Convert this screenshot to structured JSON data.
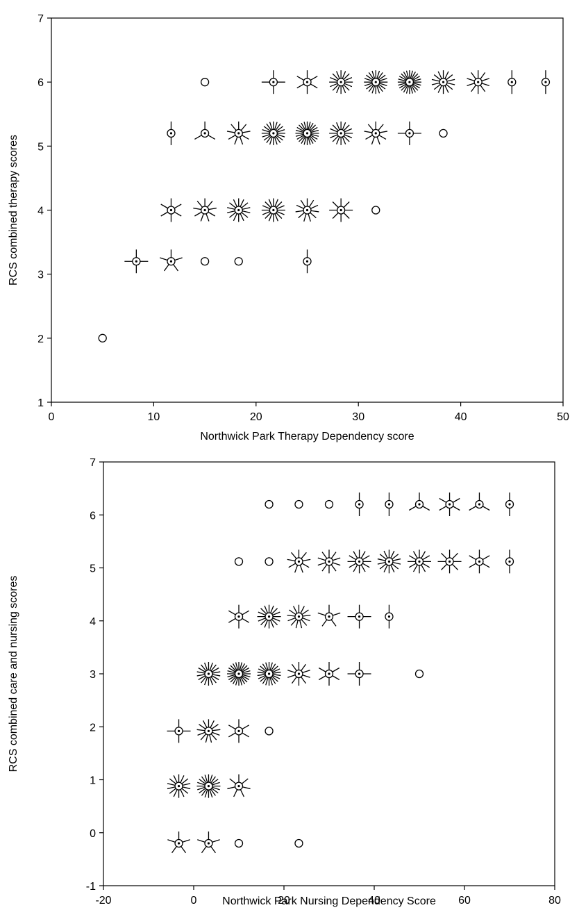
{
  "chart_data": [
    {
      "type": "scatter",
      "title": "",
      "xlabel": "Northwick Park Therapy Dependency score",
      "ylabel": "RCS combined therapy scores",
      "xlim": [
        0,
        50
      ],
      "ylim": [
        1,
        7
      ],
      "xticks": [
        0,
        10,
        20,
        30,
        40,
        50
      ],
      "yticks": [
        1,
        2,
        3,
        4,
        5,
        6,
        7
      ],
      "marker": "sunflower (circle with one ray per additional coincident observation)",
      "points": [
        {
          "x": 5,
          "y": 2,
          "n": 1
        },
        {
          "x": 8.3,
          "y": 3.2,
          "n": 4
        },
        {
          "x": 11.7,
          "y": 3.2,
          "n": 5
        },
        {
          "x": 15,
          "y": 3.2,
          "n": 1
        },
        {
          "x": 18.3,
          "y": 3.2,
          "n": 1
        },
        {
          "x": 25,
          "y": 3.2,
          "n": 2
        },
        {
          "x": 11.7,
          "y": 4,
          "n": 6
        },
        {
          "x": 15,
          "y": 4,
          "n": 9
        },
        {
          "x": 18.3,
          "y": 4,
          "n": 14
        },
        {
          "x": 21.7,
          "y": 4,
          "n": 16
        },
        {
          "x": 25,
          "y": 4,
          "n": 11
        },
        {
          "x": 28.3,
          "y": 4,
          "n": 8
        },
        {
          "x": 31.7,
          "y": 4,
          "n": 1
        },
        {
          "x": 11.7,
          "y": 5.2,
          "n": 2
        },
        {
          "x": 15,
          "y": 5.2,
          "n": 3
        },
        {
          "x": 18.3,
          "y": 5.2,
          "n": 9
        },
        {
          "x": 21.7,
          "y": 5.2,
          "n": 20
        },
        {
          "x": 25,
          "y": 5.2,
          "n": 24
        },
        {
          "x": 28.3,
          "y": 5.2,
          "n": 16
        },
        {
          "x": 31.7,
          "y": 5.2,
          "n": 9
        },
        {
          "x": 35,
          "y": 5.2,
          "n": 4
        },
        {
          "x": 38.3,
          "y": 5.2,
          "n": 1
        },
        {
          "x": 15,
          "y": 6,
          "n": 1
        },
        {
          "x": 21.7,
          "y": 6,
          "n": 4
        },
        {
          "x": 25,
          "y": 6,
          "n": 6
        },
        {
          "x": 28.3,
          "y": 6,
          "n": 16
        },
        {
          "x": 31.7,
          "y": 6,
          "n": 20
        },
        {
          "x": 35,
          "y": 6,
          "n": 24
        },
        {
          "x": 38.3,
          "y": 6,
          "n": 14
        },
        {
          "x": 41.7,
          "y": 6,
          "n": 10
        },
        {
          "x": 45,
          "y": 6,
          "n": 2
        },
        {
          "x": 48.3,
          "y": 6,
          "n": 2
        }
      ]
    },
    {
      "type": "scatter",
      "title": "",
      "xlabel": "Northwick Park Nursing Dependency Score",
      "ylabel": "RCS combined care and nursing scores",
      "xlim": [
        -20,
        80
      ],
      "ylim": [
        -1,
        7
      ],
      "xticks": [
        -20,
        0,
        20,
        40,
        60,
        80
      ],
      "yticks": [
        -1,
        0,
        1,
        2,
        3,
        4,
        5,
        6,
        7
      ],
      "marker": "sunflower (circle with one ray per additional coincident observation)",
      "points": [
        {
          "x": -3.3,
          "y": -0.2,
          "n": 5
        },
        {
          "x": 3.3,
          "y": -0.2,
          "n": 5
        },
        {
          "x": 10,
          "y": -0.2,
          "n": 1
        },
        {
          "x": 23.3,
          "y": -0.2,
          "n": 1
        },
        {
          "x": -3.3,
          "y": 0.88,
          "n": 14
        },
        {
          "x": 3.3,
          "y": 0.88,
          "n": 20
        },
        {
          "x": 10,
          "y": 0.88,
          "n": 7
        },
        {
          "x": -3.3,
          "y": 1.92,
          "n": 4
        },
        {
          "x": 3.3,
          "y": 1.92,
          "n": 13
        },
        {
          "x": 10,
          "y": 1.92,
          "n": 6
        },
        {
          "x": 16.7,
          "y": 1.92,
          "n": 1
        },
        {
          "x": 3.3,
          "y": 3,
          "n": 18
        },
        {
          "x": 10,
          "y": 3,
          "n": 24
        },
        {
          "x": 16.7,
          "y": 3,
          "n": 22
        },
        {
          "x": 23.3,
          "y": 3,
          "n": 10
        },
        {
          "x": 30,
          "y": 3,
          "n": 6
        },
        {
          "x": 36.7,
          "y": 3,
          "n": 4
        },
        {
          "x": 50,
          "y": 3,
          "n": 1
        },
        {
          "x": 10,
          "y": 4.08,
          "n": 6
        },
        {
          "x": 16.7,
          "y": 4.08,
          "n": 16
        },
        {
          "x": 23.3,
          "y": 4.08,
          "n": 13
        },
        {
          "x": 30,
          "y": 4.08,
          "n": 5
        },
        {
          "x": 36.7,
          "y": 4.08,
          "n": 4
        },
        {
          "x": 43.3,
          "y": 4.08,
          "n": 2
        },
        {
          "x": 10,
          "y": 5.12,
          "n": 1
        },
        {
          "x": 16.7,
          "y": 5.12,
          "n": 1
        },
        {
          "x": 23.3,
          "y": 5.12,
          "n": 9
        },
        {
          "x": 30,
          "y": 5.12,
          "n": 10
        },
        {
          "x": 36.7,
          "y": 5.12,
          "n": 12
        },
        {
          "x": 43.3,
          "y": 5.12,
          "n": 14
        },
        {
          "x": 50,
          "y": 5.12,
          "n": 12
        },
        {
          "x": 56.7,
          "y": 5.12,
          "n": 8
        },
        {
          "x": 63.3,
          "y": 5.12,
          "n": 6
        },
        {
          "x": 70,
          "y": 5.12,
          "n": 2
        },
        {
          "x": 16.7,
          "y": 6.2,
          "n": 1
        },
        {
          "x": 23.3,
          "y": 6.2,
          "n": 1
        },
        {
          "x": 30,
          "y": 6.2,
          "n": 1
        },
        {
          "x": 36.7,
          "y": 6.2,
          "n": 2
        },
        {
          "x": 43.3,
          "y": 6.2,
          "n": 2
        },
        {
          "x": 50,
          "y": 6.2,
          "n": 3
        },
        {
          "x": 56.7,
          "y": 6.2,
          "n": 6
        },
        {
          "x": 63.3,
          "y": 6.2,
          "n": 3
        },
        {
          "x": 70,
          "y": 6.2,
          "n": 2
        }
      ]
    }
  ]
}
